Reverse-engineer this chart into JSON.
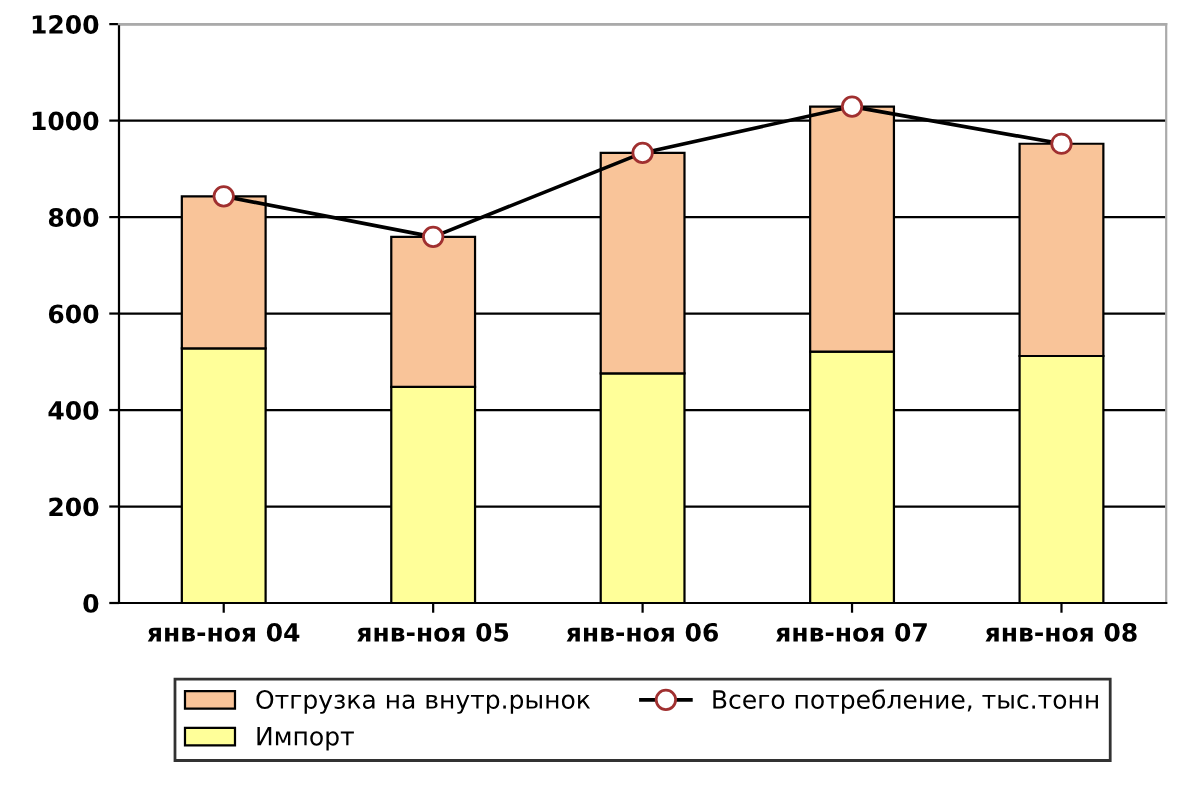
{
  "chart_data": {
    "type": "bar",
    "stacked": true,
    "categories": [
      "янв-ноя 04",
      "янв-ноя 05",
      "янв-ноя 06",
      "янв-ноя 07",
      "янв-ноя 08"
    ],
    "series": [
      {
        "name": "Импорт",
        "color": "#ffff99",
        "values": [
          528,
          448,
          476,
          521,
          512
        ]
      },
      {
        "name": "Отгрузка на внутр.рынок",
        "color": "#f9c499",
        "values": [
          315,
          311,
          457,
          508,
          440
        ]
      },
      {
        "name": "Всего потребление, тыс.тонн",
        "type": "line",
        "color": "#000000",
        "marker": "circle",
        "values": [
          843,
          759,
          933,
          1029,
          952
        ]
      }
    ],
    "ylim": [
      0,
      1200
    ],
    "yticks": [
      0,
      200,
      400,
      600,
      800,
      1000,
      1200
    ],
    "grid": "y",
    "legend": "bottom"
  }
}
